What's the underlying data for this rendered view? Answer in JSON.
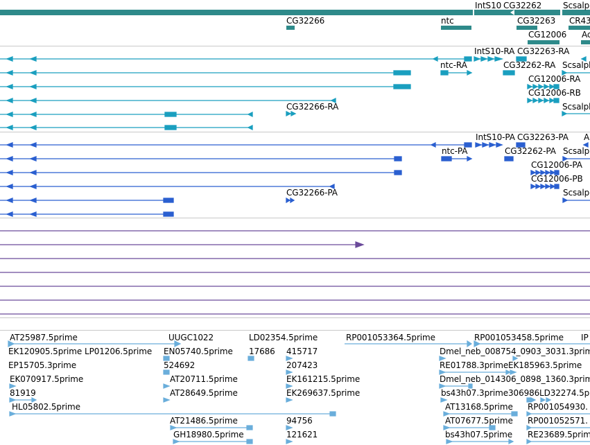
{
  "colors": {
    "gene": "#2e8a8a",
    "transcript": "#1a9fbf",
    "polypeptide": "#2a5fd0",
    "mrna_other": "#6a4a9a",
    "est": "#6aaedb",
    "separator": "#c8c8c8"
  },
  "tracks": {
    "genes": {
      "labels": [
        "IntS10",
        "CG32262",
        "Scsalph",
        "CG32266",
        "ntc",
        "CG32263",
        "CR43",
        "CG12006",
        "Ac"
      ]
    },
    "transcripts": {
      "labels": [
        "IntS10-RA",
        "CG32263-RA",
        "Scsalph",
        "ntc-RA",
        "CG32262-RA",
        "CG12006-RA",
        "CG12006-RB",
        "CG32266-RA",
        "Scsalph"
      ]
    },
    "polypeptides": {
      "labels": [
        "IntS10-PA",
        "CG32263-PA",
        "A",
        "ntc-PA",
        "CG32262-PA",
        "Scsalp",
        "CG12006-PA",
        "CG12006-PB",
        "CG32266-PA",
        "Scsalp"
      ]
    },
    "ests": {
      "labels": [
        "AT25987.5prime",
        "UUGC1022",
        "LD02354.5prime",
        "RP001053364.5prime",
        "RP001053458.5prime",
        "IP",
        "EK120905.5prime",
        "LP01206.5prime",
        "EN05740.5prime",
        "17686",
        "415717",
        "Dmel_neb_008754_0903_3031.3prime",
        "EP15705.3prime",
        "524692",
        "207423",
        "RE01788.3prime",
        "EK185963.5prime",
        "EK070917.5prime",
        "AT20711.5prime",
        "EK161215.5prime",
        "Dmel_neb_014306_0898_1360.3prime",
        "81919",
        "AT28649.5prime",
        "EK269637.5prime",
        "bs43h07.3prime",
        "306986",
        "LD32274.5p",
        "HL05802.5prime",
        "AT13168.5prime",
        "RP001054930.",
        "AT21486.5prime",
        "94756",
        "AT07677.5prime",
        "RP001052571.",
        "GH18980.5prime",
        "121621",
        "bs43h07.5prime",
        "RE23689.5prime"
      ]
    }
  }
}
